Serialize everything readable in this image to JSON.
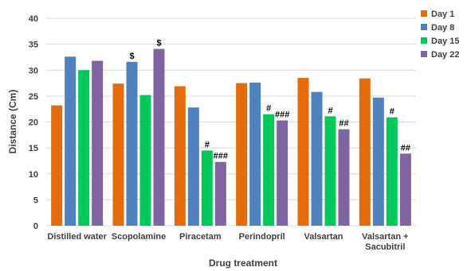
{
  "chart_data": {
    "type": "bar",
    "title": "",
    "xlabel": "Drug treatment",
    "ylabel": "Distance (Cm)",
    "ylim": [
      0,
      40
    ],
    "yticks": [
      0,
      5,
      10,
      15,
      20,
      25,
      30,
      35,
      40
    ],
    "grid": true,
    "legend_position": "top-right",
    "categories": [
      [
        "Distilled water"
      ],
      [
        "Scopolamine"
      ],
      [
        "Piracetam"
      ],
      [
        "Perindopril"
      ],
      [
        "Valsartan"
      ],
      [
        "Valsartan +",
        "Sacubitril"
      ]
    ],
    "series": [
      {
        "name": "Day 1",
        "color": "#e46c0a",
        "values": [
          23.2,
          27.4,
          26.9,
          27.5,
          28.5,
          28.4
        ]
      },
      {
        "name": "Day 8",
        "color": "#4f81bd",
        "values": [
          32.6,
          31.6,
          22.8,
          27.6,
          25.8,
          24.7
        ]
      },
      {
        "name": "Day 15",
        "color": "#00c85a",
        "values": [
          30.0,
          25.2,
          14.5,
          21.5,
          21.1,
          20.9
        ]
      },
      {
        "name": "Day 22",
        "color": "#8064a2",
        "values": [
          31.8,
          34.1,
          12.3,
          20.3,
          18.6,
          13.9
        ]
      }
    ],
    "annotations": [
      {
        "category": 1,
        "series": 1,
        "text": "$"
      },
      {
        "category": 1,
        "series": 3,
        "text": "$"
      },
      {
        "category": 2,
        "series": 2,
        "text": "#"
      },
      {
        "category": 2,
        "series": 3,
        "text": "###"
      },
      {
        "category": 3,
        "series": 2,
        "text": "#"
      },
      {
        "category": 3,
        "series": 3,
        "text": "###"
      },
      {
        "category": 4,
        "series": 2,
        "text": "#"
      },
      {
        "category": 4,
        "series": 3,
        "text": "##"
      },
      {
        "category": 5,
        "series": 2,
        "text": "#"
      },
      {
        "category": 5,
        "series": 3,
        "text": "##"
      }
    ]
  }
}
